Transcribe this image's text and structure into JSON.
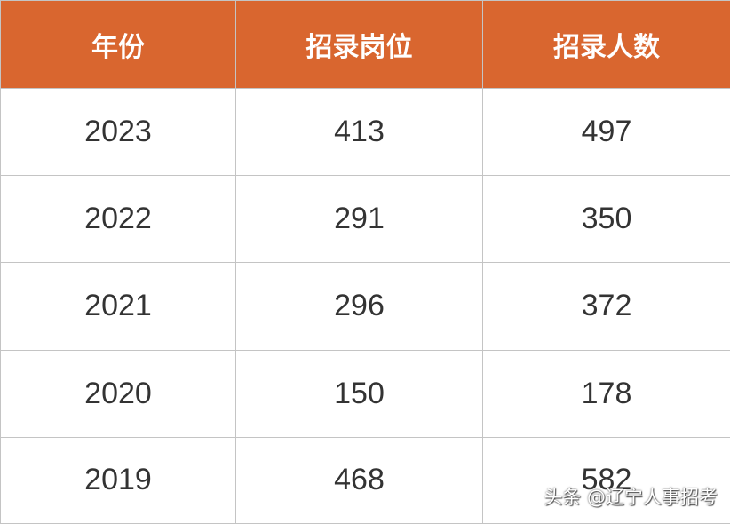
{
  "table": {
    "headers": [
      "年份",
      "招录岗位",
      "招录人数"
    ],
    "rows": [
      [
        "2023",
        "413",
        "497"
      ],
      [
        "2022",
        "291",
        "350"
      ],
      [
        "2021",
        "296",
        "372"
      ],
      [
        "2020",
        "150",
        "178"
      ],
      [
        "2019",
        "468",
        "582"
      ]
    ]
  },
  "watermark": "头条 @辽宁人事招考",
  "colors": {
    "header_background": "#d9662f",
    "header_text": "#ffffff",
    "cell_text": "#333333",
    "border": "#c4c4c4"
  }
}
